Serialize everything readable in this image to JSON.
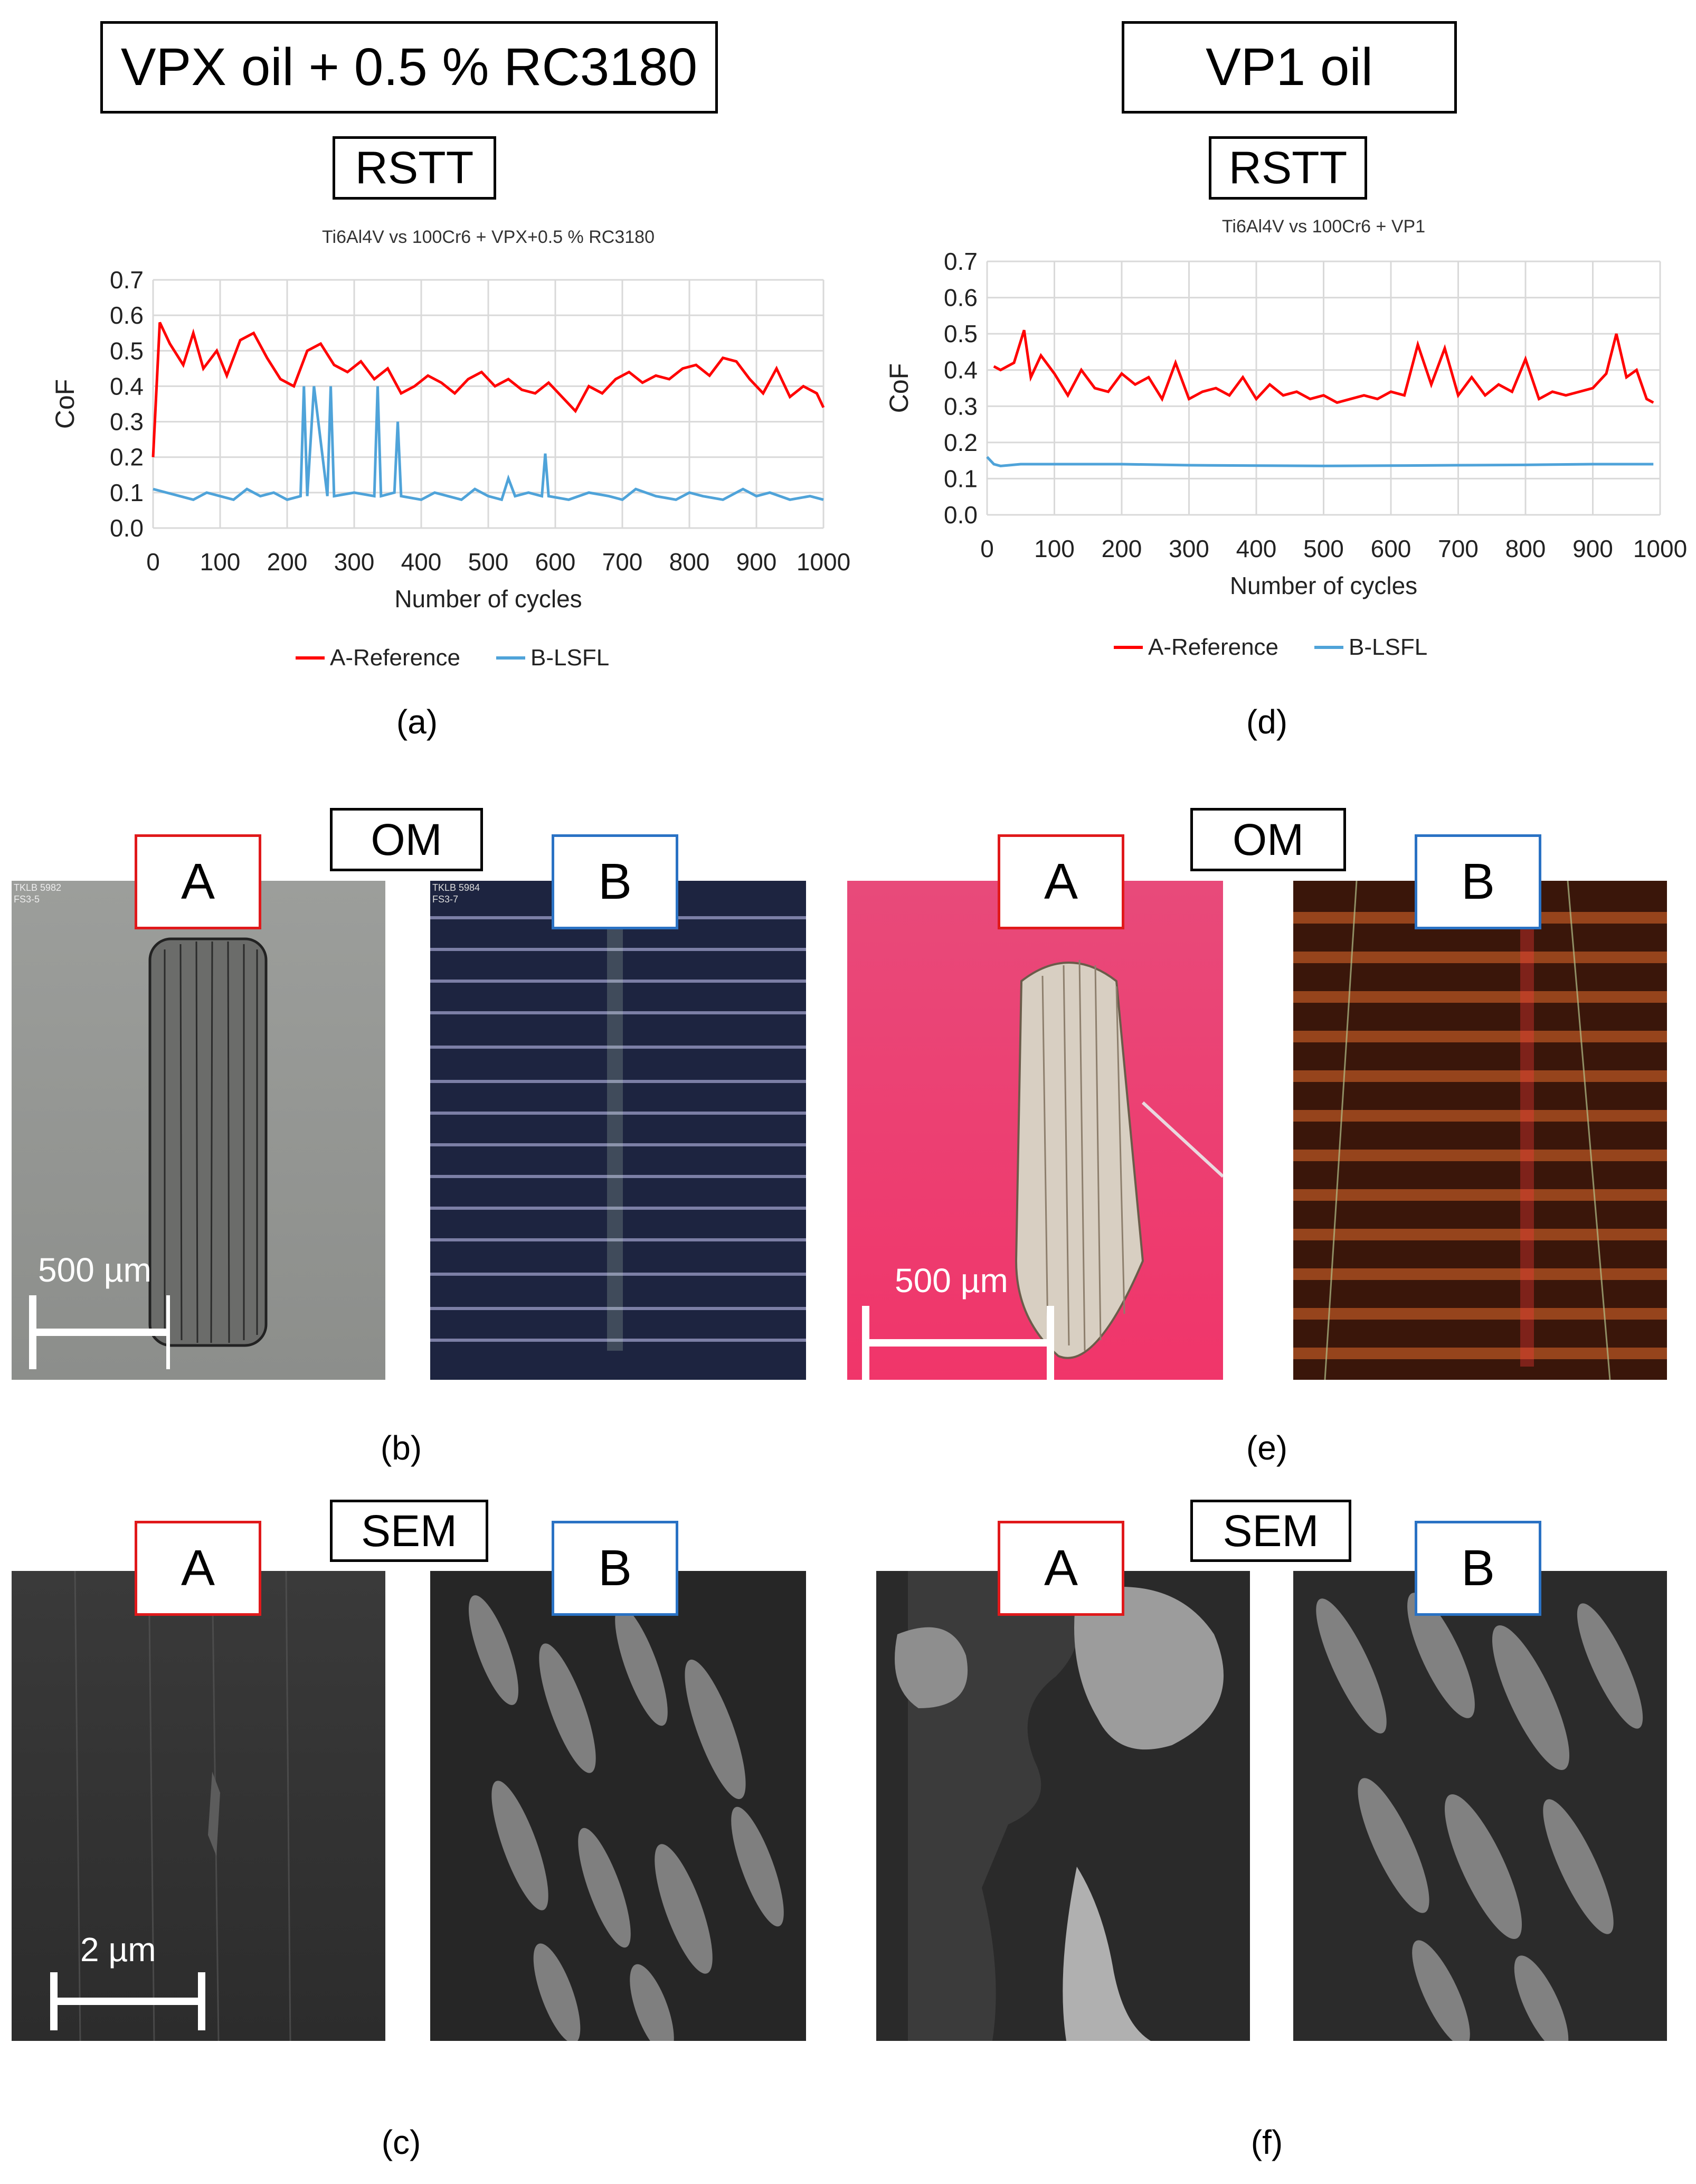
{
  "left_column": {
    "header": "VPX oil + 0.5 % RC3180",
    "rstt": "RSTT",
    "om": "OM",
    "sem": "SEM",
    "caption_chart": "(a)",
    "caption_om": "(b)",
    "caption_sem": "(c)",
    "tag_a": "A",
    "tag_b": "B",
    "om_scale": "500 µm",
    "sem_scale": "2 µm",
    "om_a_stamp_1": "TKLB 5982",
    "om_a_stamp_2": "FS3-5",
    "om_b_stamp_1": "TKLB 5984",
    "om_b_stamp_2": "FS3-7"
  },
  "right_column": {
    "header": "VP1 oil",
    "rstt": "RSTT",
    "om": "OM",
    "sem": "SEM",
    "caption_chart": "(d)",
    "caption_om": "(e)",
    "caption_sem": "(f)",
    "tag_a": "A",
    "tag_b": "B",
    "om_scale": "500 µm"
  },
  "chart_data": [
    {
      "type": "line",
      "title": "Ti6Al4V vs 100Cr6 + VPX+0.5 % RC3180",
      "xlabel": "Number of cycles",
      "ylabel": "CoF",
      "xlim": [
        0,
        1000
      ],
      "ylim": [
        0,
        0.7
      ],
      "xticks": [
        "0",
        "100",
        "200",
        "300",
        "400",
        "500",
        "600",
        "700",
        "800",
        "900",
        "1000"
      ],
      "yticks": [
        "0.0",
        "0.1",
        "0.2",
        "0.3",
        "0.4",
        "0.5",
        "0.6",
        "0.7"
      ],
      "grid": true,
      "legend": "bottom",
      "series": [
        {
          "name": "A-Reference",
          "color": "#ff0000",
          "x": [
            0,
            10,
            25,
            45,
            60,
            75,
            95,
            110,
            130,
            150,
            170,
            190,
            210,
            230,
            250,
            270,
            290,
            310,
            330,
            350,
            370,
            390,
            410,
            430,
            450,
            470,
            490,
            510,
            530,
            550,
            570,
            590,
            610,
            630,
            650,
            670,
            690,
            710,
            730,
            750,
            770,
            790,
            810,
            830,
            850,
            870,
            890,
            910,
            930,
            950,
            970,
            990,
            1000
          ],
          "y": [
            0.2,
            0.58,
            0.52,
            0.46,
            0.55,
            0.45,
            0.5,
            0.43,
            0.53,
            0.55,
            0.48,
            0.42,
            0.4,
            0.5,
            0.52,
            0.46,
            0.44,
            0.47,
            0.42,
            0.45,
            0.38,
            0.4,
            0.43,
            0.41,
            0.38,
            0.42,
            0.44,
            0.4,
            0.42,
            0.39,
            0.38,
            0.41,
            0.37,
            0.33,
            0.4,
            0.38,
            0.42,
            0.44,
            0.41,
            0.43,
            0.42,
            0.45,
            0.46,
            0.43,
            0.48,
            0.47,
            0.42,
            0.38,
            0.45,
            0.37,
            0.4,
            0.38,
            0.34
          ]
        },
        {
          "name": "B-LSFL",
          "color": "#4fa3d9",
          "x": [
            0,
            20,
            40,
            60,
            80,
            100,
            120,
            140,
            160,
            180,
            200,
            220,
            225,
            230,
            240,
            260,
            265,
            270,
            300,
            330,
            335,
            340,
            360,
            365,
            370,
            400,
            420,
            440,
            460,
            480,
            500,
            520,
            530,
            540,
            560,
            580,
            585,
            590,
            620,
            650,
            680,
            700,
            720,
            750,
            780,
            800,
            820,
            850,
            880,
            900,
            920,
            950,
            980,
            1000
          ],
          "y": [
            0.11,
            0.1,
            0.09,
            0.08,
            0.1,
            0.09,
            0.08,
            0.11,
            0.09,
            0.1,
            0.08,
            0.09,
            0.4,
            0.09,
            0.4,
            0.09,
            0.4,
            0.09,
            0.1,
            0.09,
            0.4,
            0.09,
            0.1,
            0.3,
            0.09,
            0.08,
            0.1,
            0.09,
            0.08,
            0.11,
            0.09,
            0.08,
            0.14,
            0.09,
            0.1,
            0.09,
            0.21,
            0.09,
            0.08,
            0.1,
            0.09,
            0.08,
            0.11,
            0.09,
            0.08,
            0.1,
            0.09,
            0.08,
            0.11,
            0.09,
            0.1,
            0.08,
            0.09,
            0.08
          ]
        }
      ]
    },
    {
      "type": "line",
      "title": "Ti6Al4V vs 100Cr6 + VP1",
      "xlabel": "Number of cycles",
      "ylabel": "CoF",
      "xlim": [
        0,
        1000
      ],
      "ylim": [
        0,
        0.7
      ],
      "xticks": [
        "0",
        "100",
        "200",
        "300",
        "400",
        "500",
        "600",
        "700",
        "800",
        "900",
        "1000"
      ],
      "yticks": [
        "0.0",
        "0.1",
        "0.2",
        "0.3",
        "0.4",
        "0.5",
        "0.6",
        "0.7"
      ],
      "grid": true,
      "legend": "bottom",
      "series": [
        {
          "name": "A-Reference",
          "color": "#ff0000",
          "x": [
            10,
            20,
            30,
            40,
            55,
            65,
            80,
            100,
            120,
            140,
            160,
            180,
            200,
            220,
            240,
            260,
            280,
            300,
            320,
            340,
            360,
            380,
            400,
            420,
            440,
            460,
            480,
            500,
            520,
            540,
            560,
            580,
            600,
            620,
            640,
            660,
            680,
            700,
            720,
            740,
            760,
            780,
            800,
            820,
            840,
            860,
            880,
            900,
            920,
            935,
            950,
            965,
            980,
            990
          ],
          "y": [
            0.41,
            0.4,
            0.41,
            0.42,
            0.51,
            0.38,
            0.44,
            0.39,
            0.33,
            0.4,
            0.35,
            0.34,
            0.39,
            0.36,
            0.38,
            0.32,
            0.42,
            0.32,
            0.34,
            0.35,
            0.33,
            0.38,
            0.32,
            0.36,
            0.33,
            0.34,
            0.32,
            0.33,
            0.31,
            0.32,
            0.33,
            0.32,
            0.34,
            0.33,
            0.47,
            0.36,
            0.46,
            0.33,
            0.38,
            0.33,
            0.36,
            0.34,
            0.43,
            0.32,
            0.34,
            0.33,
            0.34,
            0.35,
            0.39,
            0.5,
            0.38,
            0.4,
            0.32,
            0.31
          ]
        },
        {
          "name": "B-LSFL",
          "color": "#4fa3d9",
          "x": [
            0,
            10,
            20,
            50,
            100,
            200,
            300,
            400,
            500,
            600,
            700,
            800,
            900,
            990
          ],
          "y": [
            0.16,
            0.14,
            0.135,
            0.14,
            0.14,
            0.14,
            0.137,
            0.136,
            0.135,
            0.136,
            0.137,
            0.138,
            0.14,
            0.14
          ]
        }
      ]
    }
  ]
}
